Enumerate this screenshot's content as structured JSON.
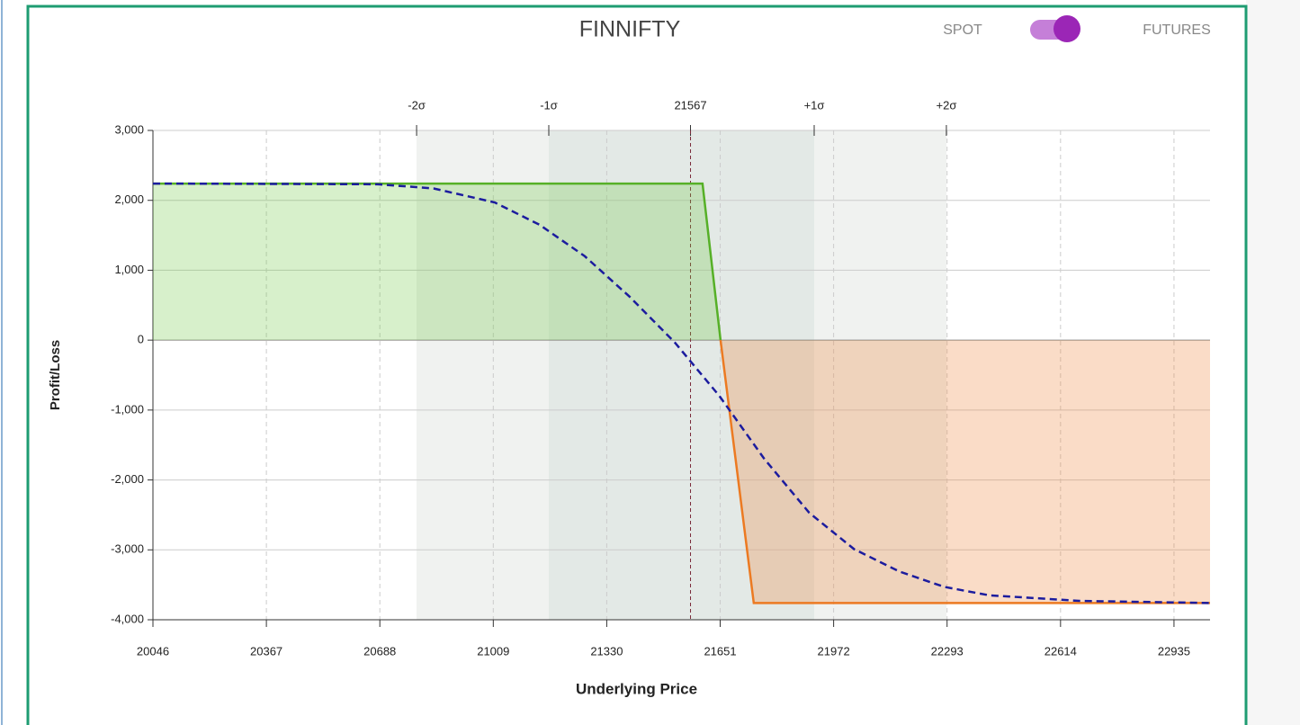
{
  "header": {
    "title": "FINNIFTY",
    "toggle_left": "SPOT",
    "toggle_right": "FUTURES"
  },
  "chart_data": {
    "type": "line",
    "xlabel": "Underlying Price",
    "ylabel": "Profit/Loss",
    "xlim": [
      20046,
      23037
    ],
    "ylim": [
      -4000,
      3000
    ],
    "xticks": [
      20046,
      20367,
      20688,
      21009,
      21330,
      21651,
      21972,
      22293,
      22614,
      22935
    ],
    "yticks": [
      {
        "value": -4000,
        "label": "-4,000"
      },
      {
        "value": -3000,
        "label": "-3,000"
      },
      {
        "value": -2000,
        "label": "-2,000"
      },
      {
        "value": -1000,
        "label": "-1,000"
      },
      0,
      {
        "value": 1000,
        "label": "1,000"
      },
      {
        "value": 2000,
        "label": "2,000"
      },
      {
        "value": 3000,
        "label": "3,000"
      }
    ],
    "x2ticks": [
      {
        "value": 20792,
        "label": "-2σ"
      },
      {
        "value": 21166,
        "label": "-1σ"
      },
      21567,
      {
        "value": 21917,
        "label": "+1σ"
      },
      {
        "value": 22291,
        "label": "+2σ"
      }
    ],
    "grid": true,
    "series": [
      {
        "color": "#56b027",
        "loss_color": "#ec7a22",
        "fill": true,
        "x": [
          20046,
          21601,
          21652,
          21746,
          23037
        ],
        "values": [
          2240,
          2240,
          0,
          -3760,
          -3760
        ]
      },
      {
        "color": "#1c1c9e",
        "dashed": true,
        "x": [
          20046,
          20682,
          20840,
          21013,
          21140,
          21268,
          21395,
          21522,
          21649,
          21776,
          21903,
          22030,
          22158,
          22285,
          22412,
          22667,
          23037
        ],
        "values": [
          2240,
          2230,
          2170,
          1970,
          1650,
          1200,
          620,
          -30,
          -800,
          -1700,
          -2470,
          -2990,
          -3310,
          -3530,
          -3650,
          -3730,
          -3760
        ]
      }
    ]
  }
}
